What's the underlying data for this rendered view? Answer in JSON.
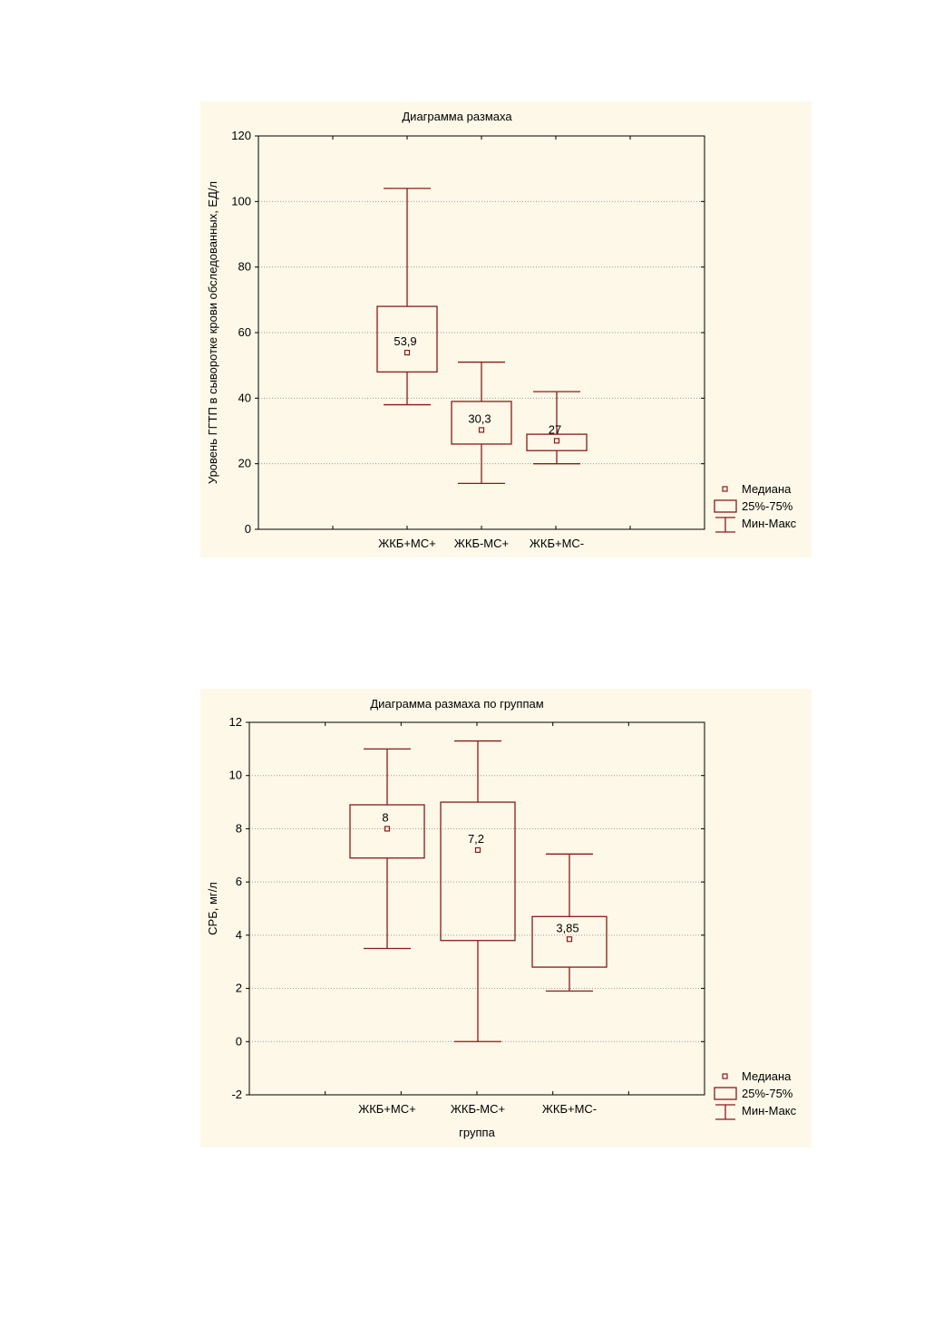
{
  "colors": {
    "mark": "#8b1a1a",
    "panel_bg": "#fdf8e8",
    "grid": "#9a9a9a"
  },
  "legend": {
    "median": "Медиана",
    "box": "25%-75%",
    "whisker": "Мин-Макс"
  },
  "chart_data": [
    {
      "type": "boxplot",
      "title": "Диаграмма размаха",
      "xlabel": "",
      "ylabel": "Уровень ГГТП в сыворотке крови обследованных, ЕД/л",
      "ylim": [
        0,
        120
      ],
      "yticks": [
        "0",
        "20",
        "40",
        "60",
        "80",
        "100",
        "120"
      ],
      "categories": [
        "ЖКБ+МС+",
        "ЖКБ-МС+",
        "ЖКБ+МС-"
      ],
      "series": [
        {
          "min": 38,
          "q1": 48,
          "median": 53.9,
          "q3": 68,
          "max": 104,
          "label": "53,9"
        },
        {
          "min": 14,
          "q1": 26,
          "median": 30.3,
          "q3": 39,
          "max": 51,
          "label": "30,3"
        },
        {
          "min": 20,
          "q1": 24,
          "median": 27,
          "q3": 29,
          "max": 42,
          "label": "27"
        }
      ],
      "grid": true,
      "legend_position": "right"
    },
    {
      "type": "boxplot",
      "title": "Диаграмма размаха по группам",
      "xlabel": "группа",
      "ylabel": "СРБ, мг/л",
      "ylim": [
        -2,
        12
      ],
      "yticks": [
        "-2",
        "0",
        "2",
        "4",
        "6",
        "8",
        "10",
        "12"
      ],
      "categories": [
        "ЖКБ+МС+",
        "ЖКБ-МС+",
        "ЖКБ+МС-"
      ],
      "series": [
        {
          "min": 3.5,
          "q1": 6.9,
          "median": 8,
          "q3": 8.9,
          "max": 11,
          "label": "8"
        },
        {
          "min": 0,
          "q1": 3.8,
          "median": 7.2,
          "q3": 9,
          "max": 11.3,
          "label": "7,2"
        },
        {
          "min": 1.9,
          "q1": 2.8,
          "median": 3.85,
          "q3": 4.7,
          "max": 7.05,
          "label": "3,85"
        }
      ],
      "grid": true,
      "legend_position": "right"
    }
  ]
}
